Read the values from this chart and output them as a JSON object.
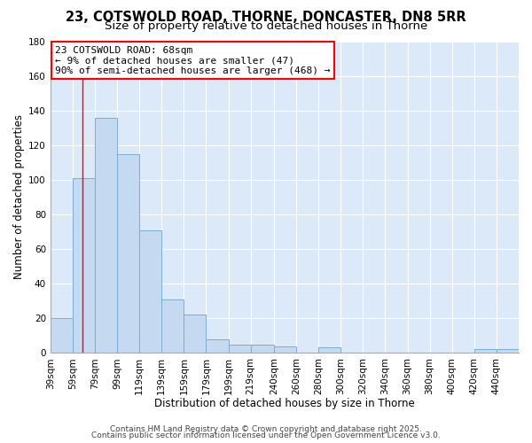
{
  "title1": "23, COTSWOLD ROAD, THORNE, DONCASTER, DN8 5RR",
  "title2": "Size of property relative to detached houses in Thorne",
  "xlabel": "Distribution of detached houses by size in Thorne",
  "ylabel": "Number of detached properties",
  "bins": [
    39,
    59,
    79,
    99,
    119,
    139,
    159,
    179,
    199,
    219,
    240,
    260,
    280,
    300,
    320,
    340,
    360,
    380,
    400,
    420,
    440
  ],
  "counts": [
    20,
    101,
    136,
    115,
    71,
    31,
    22,
    8,
    5,
    5,
    4,
    0,
    3,
    0,
    0,
    0,
    0,
    0,
    0,
    2,
    2
  ],
  "bar_color": "#c5d9f1",
  "bar_edge_color": "#7aadd4",
  "red_line_x": 68,
  "ylim": [
    0,
    180
  ],
  "yticks": [
    0,
    20,
    40,
    60,
    80,
    100,
    120,
    140,
    160,
    180
  ],
  "bg_color": "#dce9f8",
  "grid_color": "#ffffff",
  "annotation_text_line1": "23 COTSWOLD ROAD: 68sqm",
  "annotation_text_line2": "← 9% of detached houses are smaller (47)",
  "annotation_text_line3": "90% of semi-detached houses are larger (468) →",
  "footer1": "Contains HM Land Registry data © Crown copyright and database right 2025.",
  "footer2": "Contains public sector information licensed under the Open Government Licence v3.0.",
  "title1_fontsize": 10.5,
  "title2_fontsize": 9.5,
  "axis_label_fontsize": 8.5,
  "tick_fontsize": 7.5,
  "annotation_fontsize": 8,
  "footer_fontsize": 6.5
}
